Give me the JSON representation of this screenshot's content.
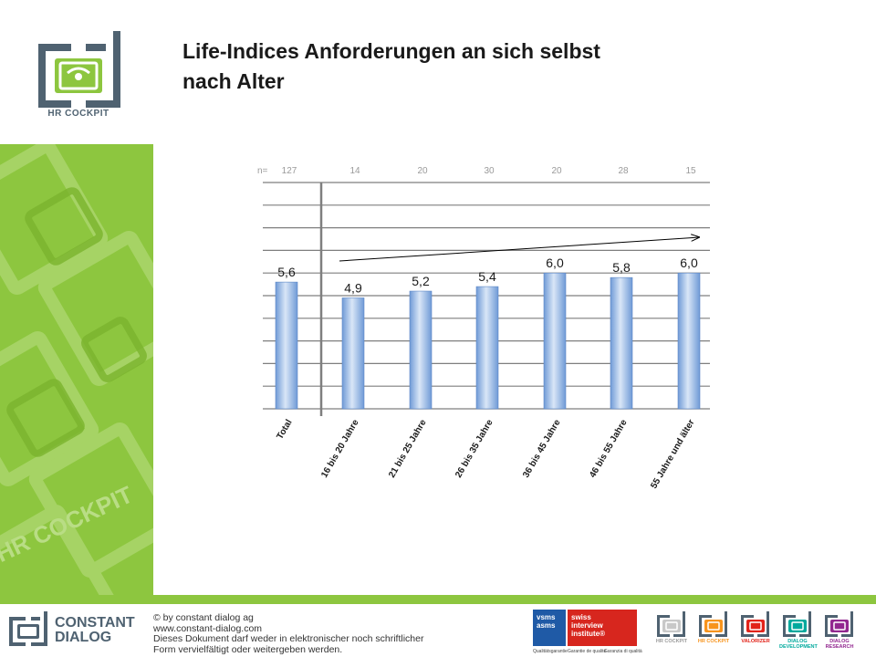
{
  "slide": {
    "title_line1": "Life-Indices Anforderungen an sich selbst",
    "title_line2": "nach Alter"
  },
  "brand": {
    "logo_text": "HR COCKPIT",
    "watermark_text": "HR COCKPIT",
    "green": "#8dc63f",
    "slate": "#4f6271"
  },
  "chart_data": {
    "type": "bar",
    "n_label": "n=",
    "n_values": [
      "127",
      "14",
      "20",
      "30",
      "20",
      "28",
      "15"
    ],
    "categories": [
      "Total",
      "16 bis 20 Jahre",
      "21 bis 25 Jahre",
      "26 bis 35 Jahre",
      "36 bis 45 Jahre",
      "46 bis 55 Jahre",
      "55 Jahre und älter"
    ],
    "values": [
      5.6,
      4.9,
      5.2,
      5.4,
      6.0,
      5.8,
      6.0
    ],
    "value_labels": [
      "5,6",
      "4,9",
      "5,2",
      "5,4",
      "6,0",
      "5,8",
      "6,0"
    ],
    "ylim": [
      0,
      10
    ],
    "grid": true,
    "trend_arrow": true,
    "bar_color": "#8fb4e3"
  },
  "footer": {
    "brand_line1": "CONSTANT",
    "brand_line2": "DIALOG",
    "line1": "© by constant dialog ag",
    "line2": "www.constant-dialog.com",
    "line3": "Dieses Dokument darf weder in elektronischer noch schriftlicher",
    "line4": "Form vervielfältigt oder weitergeben werden.",
    "cert1_line1": "vsms",
    "cert1_line2": "asms",
    "cert2_line1": "swiss",
    "cert2_line2": "interview institute®",
    "cert_caption1": "Qualitätsgarantie",
    "cert_caption2": "Garantie de qualité",
    "cert_caption3": "Garanzia di qualità",
    "products": [
      "HR COCKPIT",
      "HR COCKPIT",
      "VALORIZER",
      "DIALOG DEVELOPMENT",
      "DIALOG RESEARCH"
    ],
    "product_colors": [
      "#c8c8c8",
      "#f7941d",
      "#e2231a",
      "#00a99d",
      "#92278f"
    ]
  }
}
